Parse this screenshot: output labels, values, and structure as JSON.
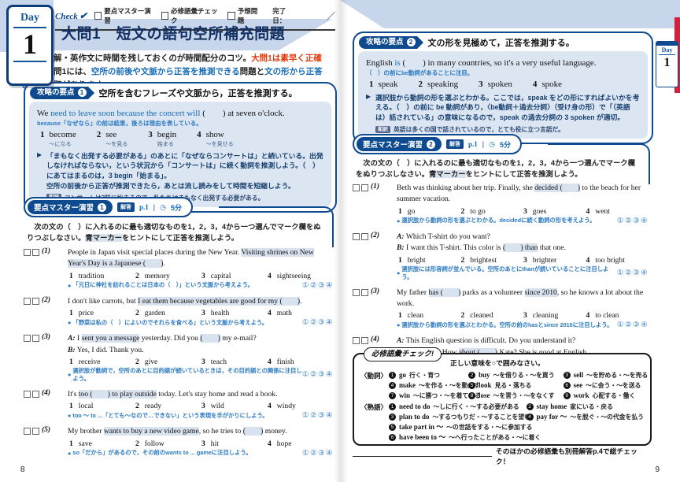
{
  "page": {
    "left_no": "8",
    "right_no": "9"
  },
  "marks": "①②③④",
  "hint_dot": "●",
  "choice_nums": [
    "1",
    "2",
    "3",
    "4"
  ],
  "header": {
    "check": "Check",
    "checkmark": "✔",
    "items": [
      "要点マスター演習",
      "必修語彙チェック",
      "予想問題"
    ],
    "done": "完了日：",
    "slash": "／"
  },
  "day_tab": {
    "day": "Day",
    "num": "1"
  },
  "mini_day_tab": {
    "day": "Day",
    "num": "1"
  },
  "inst": [
    "　次の文の（　）に入れるのに最も適切なものを1，2，3，4から一つ選んでマーク欄をぬりつぶしなさい。",
    "青マーカー",
    "をヒントにして正答を推測しよう。"
  ],
  "left": {
    "title": "大問1　短文の語句空所補充問題",
    "intro": [
      "　長文読解・英作文に時間を残しておくのが時間配分のコツ。",
      "大問1は素早く正確に！",
      "　大問1には、",
      "空所の前後や文脈から正答を推測できる",
      "問題と",
      "文の形から正答を導く",
      "問題があります。"
    ],
    "point": {
      "label": "攻略の要点",
      "num": "1",
      "heading": "空所を含むフレーズや文脈から，正答を推測する。",
      "ex": [
        "We ",
        "need to leave soon because the concert will",
        " (　　) at seven o'clock."
      ],
      "note": "because「なぜなら」の前は結果，後ろは理由を表している。",
      "choices": [
        {
          "n": "1",
          "w": "become",
          "g": "～になる"
        },
        {
          "n": "2",
          "w": "see",
          "g": "～を見る"
        },
        {
          "n": "3",
          "w": "begin",
          "g": "始まる"
        },
        {
          "n": "4",
          "w": "show",
          "g": "～を見せる"
        }
      ],
      "marker": "▶",
      "expl1": "「まもなく出発する必要がある」のあとに「なぜならコンサートは」と続いている。出発しなければならない，という状況から「コンサートは」に続く動詞を推測しよう。（　）にあてはまるのは，3 begin「始まる」。",
      "expl2": "空所の前後から正答が推測できたら，あとは流し読みをして時間を短縮しよう。",
      "wayaku_tag": "和訳",
      "wayaku": "コンサートは7時に始まるので，私たちはまもなく出発する必要がある。"
    },
    "drill": {
      "pill": "要点マスター演習",
      "num": "1",
      "ans": "解答",
      "ans_page": "p.1",
      "clock": "◷",
      "time": "5分"
    },
    "questions": [
      {
        "num": "(1)",
        "segs": [
          "People in Japan visit special places during the New Year.  ",
          "Visiting shrines on New Year's Day is a Japanese (　　)",
          "."
        ],
        "choices": [
          "tradition",
          "memory",
          "capital",
          "sightseeing"
        ],
        "hint": "「元日に神社を訪れることは日本の（　）」という文脈から考えよう。"
      },
      {
        "num": "(2)",
        "segs": [
          "I don't like carrots, but ",
          "I eat them because vegetables are good for my (　　)",
          "."
        ],
        "choices": [
          "price",
          "garden",
          "health",
          "math"
        ],
        "hint": "「野菜は私の（　）によいのでそれらを食べる」という文脈から考えよう。"
      },
      {
        "num": "(3)",
        "segs": [
          "A:",
          " I ",
          "sent you a message",
          " yesterday.  Did you ",
          "(　　)",
          " my e-mail?"
        ],
        "segs2": [
          "B:",
          " Yes, I did.  Thank you."
        ],
        "choices": [
          "receive",
          "give",
          "teach",
          "finish"
        ],
        "hint": "選択肢が動詞で，空所のあとに目的語が続いているときは，その目的語との関係に注目しよう。"
      },
      {
        "num": "(4)",
        "segs": [
          "It's ",
          "too (　　) to play outside",
          " today.  Let's stay home and read a book."
        ],
        "choices": [
          "local",
          "ready",
          "wild",
          "windy"
        ],
        "hint": "too ～ to ...「とても～なので…できない」という表現を手がかりにしよう。"
      },
      {
        "num": "(5)",
        "segs": [
          "My brother ",
          "wants to buy a new video game",
          ", so he tries to ",
          "(　　)",
          " money."
        ],
        "choices": [
          "save",
          "follow",
          "hit",
          "hope"
        ],
        "hint": "so「だから」があるので，その前のwants to ... gameに注目しよう。"
      }
    ]
  },
  "right": {
    "point": {
      "label": "攻略の要点",
      "num": "2",
      "heading": "文の形を見極めて，正答を推測する。",
      "ex": [
        "English ",
        "is",
        " (　　) in many countries, so it's a very useful language."
      ],
      "note": "（　）の前にbe動詞があることに注目。",
      "choices": [
        {
          "n": "1",
          "w": "speak"
        },
        {
          "n": "2",
          "w": "speaking"
        },
        {
          "n": "3",
          "w": "spoken"
        },
        {
          "n": "4",
          "w": "spoke"
        }
      ],
      "marker": "▶",
      "expl1": "選択肢から動詞の形を選ぶとわかる。ここでは，speak をどの形にすればよいかを考える。（　）の前に be 動詞があり，〈be動詞＋過去分詞〉（受け身の形）で「（英語は）話されている」の意味になるので，speak の過去分詞の 3 spoken が適切。",
      "wayaku_tag": "和訳",
      "wayaku": "英語は多くの国で話されているので，とても役に立つ言語だ。"
    },
    "drill": {
      "pill": "要点マスター演習",
      "num": "2",
      "ans": "解答",
      "ans_page": "p.1",
      "clock": "◷",
      "time": "5分"
    },
    "questions": [
      {
        "num": "(1)",
        "segs": [
          "Beth was thinking about her trip.  Finally, she ",
          "decided (　　)",
          " to the beach for her summer vacation."
        ],
        "choices": [
          "go",
          "to go",
          "goes",
          "went"
        ],
        "hint": "選択肢から動詞の形を選ぶとわかる。decidedに続く動詞の形を考えよう。"
      },
      {
        "num": "(2)",
        "segs": [
          "A:",
          " Which T-shirt do you want?"
        ],
        "segs2": [
          "B:",
          " I want this T-shirt.  This color is ",
          "(　　) than",
          " that one."
        ],
        "choices": [
          "bright",
          "brightest",
          "brighter",
          "too bright"
        ],
        "hint": "選択肢には形容詞が並んでいる。空所のあとにthanが続いていることに注目しよう。"
      },
      {
        "num": "(3)",
        "segs": [
          "My father ",
          "has (　　)",
          " parks as a volunteer ",
          "since 2010",
          ", so he knows a lot about the work."
        ],
        "choices": [
          "clean",
          "cleaned",
          "cleaning",
          "to clean"
        ],
        "hint": "選択肢から動詞の形を選ぶとわかる。空所の前のhasとsince 2010に注目しよう。"
      },
      {
        "num": "(4)",
        "segs": [
          "A:",
          " This English question is difficult.  Do you understand it?"
        ],
        "segs2": [
          "B:",
          " No, I don't.  How ",
          "about (　　)",
          " Kate?  She is good at English."
        ],
        "choices": [
          "ask",
          "asks",
          "to ask",
          "asking"
        ],
        "hint": "前置詞aboutのあとに続く動詞の形を考えよう。"
      }
    ],
    "vocab": {
      "label": "必修語彙チェック!",
      "inst": "正しい意味を○で囲みなさい。",
      "verb_head": "〈動詞〉",
      "idiom_head": "〈熟語〉",
      "verbs": [
        {
          "n": "1",
          "w": "go",
          "m": "行く・育つ"
        },
        {
          "n": "2",
          "w": "buy",
          "m": "～を借りる・～を買う"
        },
        {
          "n": "3",
          "w": "sell",
          "m": "～を貯める・～を売る"
        },
        {
          "n": "4",
          "w": "make",
          "m": "～を作る・～を動かす"
        },
        {
          "n": "5",
          "w": "look",
          "m": "見る・落ちる"
        },
        {
          "n": "6",
          "w": "see",
          "m": "～に会う・～を送る"
        },
        {
          "n": "7",
          "w": "win",
          "m": "～に勝つ・～を着ている"
        },
        {
          "n": "8",
          "w": "lose",
          "m": "～を習う・～をなくす"
        },
        {
          "n": "9",
          "w": "work",
          "m": "心配する・働く"
        }
      ],
      "idioms": [
        {
          "n": "1",
          "w": "need to do",
          "m": "～しに行く・～する必要がある"
        },
        {
          "n": "2",
          "w": "stay home",
          "m": "家にいる・戻る"
        },
        {
          "n": "3",
          "w": "plan to do",
          "m": "～するつもりだ・～することを望む"
        },
        {
          "n": "4",
          "w": "pay for ～",
          "m": "～を脱ぐ・～の代金を払う"
        },
        {
          "n": "5",
          "w": "take part in ～",
          "m": "～の世話をする・～に参加する"
        },
        {
          "n": "6",
          "w": "have been to ～",
          "m": "～へ行ったことがある・～に着く"
        }
      ],
      "footer": "そのほかの必修語彙も別冊解答p.4で総チェック！"
    }
  }
}
